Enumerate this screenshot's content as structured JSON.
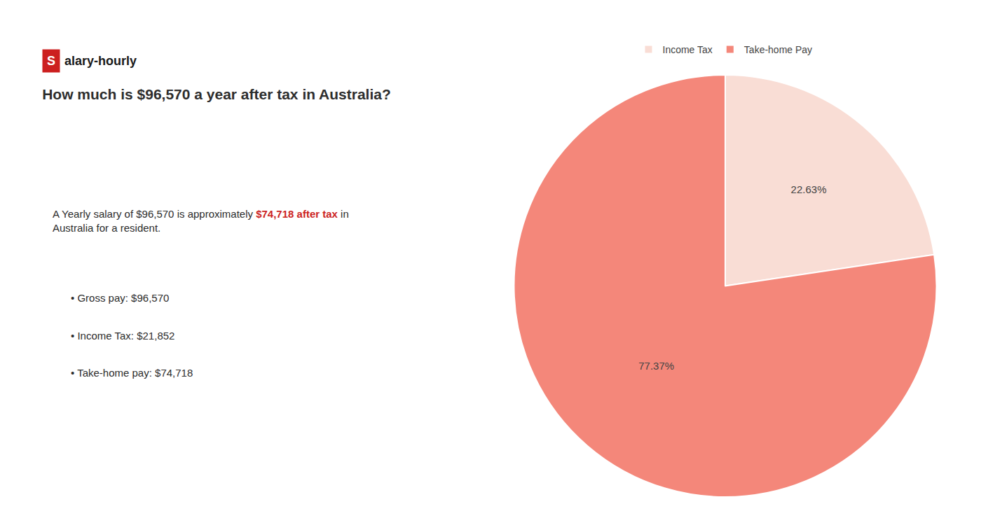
{
  "chart_data": {
    "type": "pie",
    "title": "How much is $96,570 a year after tax in Australia?",
    "categories": [
      "Income Tax",
      "Take-home Pay"
    ],
    "values": [
      22.63,
      77.37
    ],
    "value_labels": [
      "22.63%",
      "77.37%"
    ],
    "colors": [
      "#f9ddd5",
      "#f4877a"
    ],
    "data_labels": true,
    "legend": "top",
    "annotations": [
      {
        "text": "S",
        "color": "#cc1f1f"
      },
      {
        "text": "alary-hourly"
      },
      {
        "text": "A Yearly salary of $96,570 is approximately "
      },
      {
        "text": "$74,718 after tax",
        "color": "#cc1f1f"
      },
      {
        "text": " in"
      },
      {
        "text": "Australia for a resident."
      },
      {
        "text": "• Gross pay: $96,570"
      },
      {
        "text": "• Income Tax: $21,852"
      },
      {
        "text": "• Take-home pay: $74,718"
      }
    ]
  }
}
